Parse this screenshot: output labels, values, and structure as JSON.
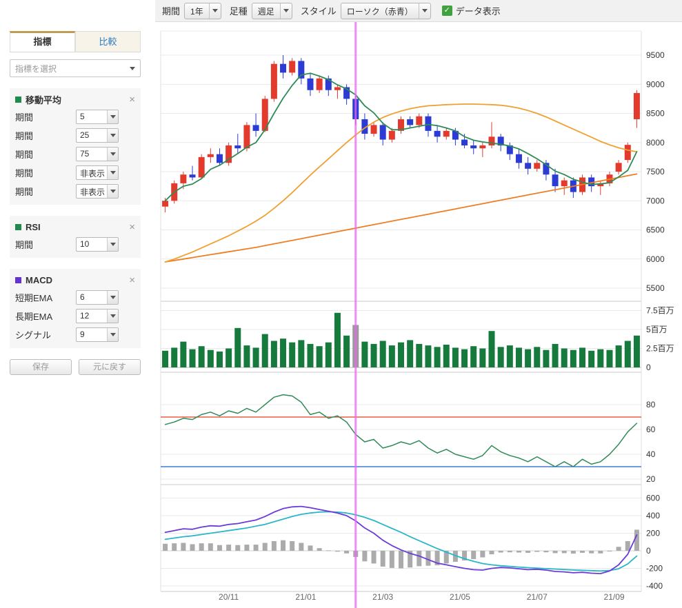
{
  "icons": {
    "close": "×",
    "check": "✓"
  },
  "toolbar": {
    "period_label": "期間",
    "period_value": "1年",
    "bartype_label": "足種",
    "bartype_value": "週足",
    "style_label": "スタイル",
    "style_value": "ローソク（赤青）",
    "data_display_label": "データ表示"
  },
  "sidebar": {
    "tabs": [
      {
        "label": "指標"
      },
      {
        "label": "比較"
      }
    ],
    "indicator_select_placeholder": "指標を選択",
    "sections": [
      {
        "title": "移動平均",
        "color": "#1f8a4c",
        "rows": [
          {
            "label": "期間",
            "value": "5"
          },
          {
            "label": "期間",
            "value": "25"
          },
          {
            "label": "期間",
            "value": "75"
          },
          {
            "label": "期間",
            "value": "非表示"
          },
          {
            "label": "期間",
            "value": "非表示"
          }
        ]
      },
      {
        "title": "RSI",
        "color": "#1f8a4c",
        "rows": [
          {
            "label": "期間",
            "value": "10"
          }
        ]
      },
      {
        "title": "MACD",
        "color": "#6633cc",
        "rows": [
          {
            "label": "短期EMA",
            "value": "6"
          },
          {
            "label": "長期EMA",
            "value": "12"
          },
          {
            "label": "シグナル",
            "value": "9"
          }
        ]
      }
    ],
    "save_label": "保存",
    "reset_label": "元に戻す"
  },
  "chart_data": {
    "type": "candlestick+volume+rsi+macd",
    "interval": "weekly",
    "range": "1年",
    "price_axis_ticks": [
      9500,
      9000,
      8500,
      8000,
      7500,
      7000,
      6500,
      6000,
      5500
    ],
    "volume_axis_ticks": [
      {
        "label": "7.5百万",
        "value": 7.5
      },
      {
        "label": "5百万",
        "value": 5
      },
      {
        "label": "2.5百万",
        "value": 2.5
      },
      {
        "label": "0",
        "value": 0
      }
    ],
    "rsi_axis_ticks": [
      80,
      60,
      40,
      20
    ],
    "macd_axis_ticks": [
      600,
      400,
      200,
      0,
      -200,
      -400
    ],
    "x_ticks": [
      {
        "label": "20/11",
        "index": 7
      },
      {
        "label": "21/01",
        "index": 15.5
      },
      {
        "label": "21/03",
        "index": 24
      },
      {
        "label": "21/05",
        "index": 32.5
      },
      {
        "label": "21/07",
        "index": 41
      },
      {
        "label": "21/09",
        "index": 49.5
      }
    ],
    "selected_index": 21,
    "candles": [
      [
        6900,
        7050,
        6800,
        7000
      ],
      [
        7000,
        7350,
        6950,
        7300
      ],
      [
        7300,
        7500,
        7200,
        7450
      ],
      [
        7450,
        7600,
        7350,
        7400
      ],
      [
        7400,
        7800,
        7380,
        7750
      ],
      [
        7750,
        7900,
        7650,
        7800
      ],
      [
        7800,
        7900,
        7600,
        7650
      ],
      [
        7650,
        8000,
        7600,
        7950
      ],
      [
        7950,
        8150,
        7800,
        7900
      ],
      [
        7900,
        8350,
        7850,
        8300
      ],
      [
        8300,
        8500,
        8100,
        8200
      ],
      [
        8200,
        8800,
        8180,
        8750
      ],
      [
        8750,
        9400,
        8700,
        9350
      ],
      [
        9350,
        9500,
        9100,
        9200
      ],
      [
        9200,
        9450,
        9150,
        9400
      ],
      [
        9400,
        9450,
        9000,
        9100
      ],
      [
        9100,
        9200,
        8800,
        8900
      ],
      [
        8900,
        9150,
        8850,
        9100
      ],
      [
        9100,
        9150,
        8800,
        8900
      ],
      [
        8900,
        9000,
        8750,
        8950
      ],
      [
        8950,
        9000,
        8650,
        8750
      ],
      [
        8750,
        8800,
        8300,
        8400
      ],
      [
        8400,
        8500,
        8050,
        8150
      ],
      [
        8150,
        8350,
        8100,
        8300
      ],
      [
        8300,
        8350,
        7950,
        8050
      ],
      [
        8050,
        8250,
        8000,
        8200
      ],
      [
        8200,
        8450,
        8150,
        8400
      ],
      [
        8400,
        8450,
        8250,
        8300
      ],
      [
        8300,
        8500,
        8250,
        8450
      ],
      [
        8450,
        8500,
        8100,
        8200
      ],
      [
        8200,
        8300,
        8000,
        8100
      ],
      [
        8100,
        8250,
        8050,
        8200
      ],
      [
        8200,
        8250,
        7950,
        8050
      ],
      [
        8050,
        8150,
        7900,
        7950
      ],
      [
        7950,
        8050,
        7800,
        7900
      ],
      [
        7900,
        8000,
        7750,
        7950
      ],
      [
        7950,
        8350,
        7900,
        8100
      ],
      [
        8100,
        8150,
        7850,
        7950
      ],
      [
        7950,
        8000,
        7700,
        7800
      ],
      [
        7800,
        7900,
        7550,
        7650
      ],
      [
        7650,
        7750,
        7450,
        7550
      ],
      [
        7550,
        7700,
        7500,
        7650
      ],
      [
        7650,
        7700,
        7350,
        7450
      ],
      [
        7450,
        7550,
        7150,
        7250
      ],
      [
        7250,
        7400,
        7100,
        7350
      ],
      [
        7350,
        7400,
        7050,
        7150
      ],
      [
        7150,
        7450,
        7100,
        7400
      ],
      [
        7400,
        7450,
        7150,
        7250
      ],
      [
        7250,
        7350,
        7100,
        7300
      ],
      [
        7300,
        7500,
        7250,
        7450
      ],
      [
        7500,
        7700,
        7450,
        7650
      ],
      [
        7700,
        8000,
        7650,
        7960
      ],
      [
        8400,
        8900,
        8250,
        8850
      ]
    ],
    "ma5_window": 5,
    "ma25": [
      5950,
      6000,
      6060,
      6120,
      6190,
      6260,
      6330,
      6400,
      6480,
      6560,
      6650,
      6750,
      6870,
      7000,
      7140,
      7290,
      7440,
      7580,
      7720,
      7860,
      8000,
      8130,
      8250,
      8350,
      8430,
      8490,
      8540,
      8580,
      8610,
      8630,
      8640,
      8650,
      8655,
      8660,
      8660,
      8655,
      8650,
      8640,
      8620,
      8590,
      8550,
      8500,
      8440,
      8370,
      8300,
      8230,
      8160,
      8090,
      8020,
      7960,
      7910,
      7870,
      7840
    ],
    "ma75": [
      5950,
      5975,
      6000,
      6025,
      6050,
      6075,
      6100,
      6125,
      6150,
      6175,
      6200,
      6230,
      6260,
      6290,
      6320,
      6350,
      6380,
      6410,
      6440,
      6470,
      6500,
      6530,
      6560,
      6590,
      6620,
      6650,
      6680,
      6710,
      6740,
      6770,
      6800,
      6830,
      6860,
      6890,
      6920,
      6950,
      6980,
      7010,
      7040,
      7070,
      7100,
      7130,
      7160,
      7190,
      7220,
      7250,
      7280,
      7310,
      7340,
      7370,
      7400,
      7430,
      7460
    ],
    "volume_millions": [
      2.2,
      2.6,
      3.4,
      2.4,
      2.8,
      2.3,
      2.1,
      2.5,
      5.2,
      2.9,
      2.6,
      4.4,
      3.5,
      3.8,
      3.3,
      3.6,
      3.1,
      2.8,
      3.3,
      7.2,
      4.2,
      5.6,
      3.4,
      3.1,
      3.5,
      2.9,
      3.3,
      3.6,
      3.1,
      2.9,
      2.7,
      3.0,
      2.6,
      2.4,
      2.8,
      2.5,
      4.8,
      2.7,
      2.9,
      2.6,
      2.4,
      2.7,
      2.3,
      3.1,
      2.5,
      2.3,
      2.6,
      2.2,
      2.4,
      2.3,
      2.9,
      3.5,
      4.2
    ],
    "rsi": [
      64,
      66,
      69,
      68,
      72,
      74,
      71,
      75,
      73,
      77,
      74,
      80,
      86,
      88,
      87,
      82,
      72,
      74,
      69,
      71,
      66,
      56,
      50,
      52,
      45,
      47,
      50,
      48,
      51,
      45,
      41,
      44,
      40,
      38,
      36,
      39,
      47,
      42,
      39,
      37,
      34,
      38,
      34,
      30,
      34,
      30,
      36,
      32,
      34,
      40,
      48,
      58,
      65
    ],
    "rsi_upper_line": 70,
    "rsi_lower_line": 30,
    "macd": [
      210,
      230,
      250,
      245,
      270,
      285,
      280,
      300,
      310,
      330,
      350,
      390,
      440,
      480,
      500,
      505,
      490,
      470,
      450,
      430,
      400,
      340,
      260,
      200,
      120,
      60,
      10,
      -30,
      -60,
      -100,
      -140,
      -160,
      -180,
      -200,
      -215,
      -220,
      -200,
      -190,
      -195,
      -205,
      -215,
      -210,
      -220,
      -235,
      -240,
      -250,
      -245,
      -255,
      -260,
      -230,
      -160,
      -40,
      180
    ],
    "macd_signal": [
      130,
      145,
      160,
      170,
      185,
      200,
      215,
      230,
      245,
      260,
      280,
      300,
      330,
      360,
      390,
      415,
      430,
      440,
      445,
      440,
      430,
      410,
      380,
      345,
      300,
      255,
      210,
      160,
      115,
      70,
      25,
      -15,
      -55,
      -90,
      -120,
      -145,
      -160,
      -170,
      -178,
      -185,
      -192,
      -198,
      -203,
      -208,
      -213,
      -218,
      -222,
      -226,
      -230,
      -225,
      -205,
      -150,
      -60
    ],
    "colors": {
      "up": "#e23b2e",
      "down": "#2b3bd4",
      "ma5": "#2e8b57",
      "ma25": "#f0a030",
      "ma75": "#ef7d22",
      "volume": "#157a3c",
      "volume_selected": "#9a9a9a",
      "rsi": "#2e8b57",
      "rsi_upper": "#e03c1f",
      "rsi_lower": "#1f5fd0",
      "macd_line": "#6a3bd8",
      "signal_line": "#2ab6c9",
      "histogram": "#ababab",
      "crosshair": "#ee66f0"
    }
  }
}
